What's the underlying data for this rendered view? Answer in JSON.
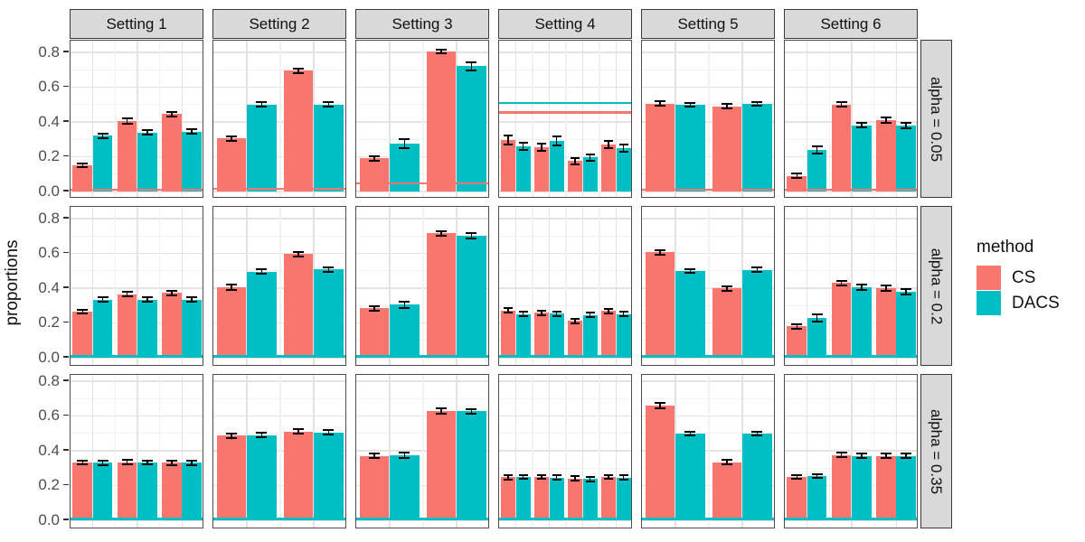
{
  "chart_data": {
    "type": "bar",
    "title": "",
    "xlabel": "",
    "ylabel": "proportions",
    "ylim": [
      0,
      0.87
    ],
    "grid": "on",
    "yticks": {
      "values": [
        0,
        0.2,
        0.4,
        0.6,
        0.8
      ],
      "labels": [
        "0.0",
        "0.2",
        "0.4",
        "0.6",
        "0.8"
      ]
    },
    "series": [
      "CS",
      "DACS"
    ],
    "colors": {
      "CS": "#F8766D",
      "DACS": "#00BFC4",
      "error_bar": "#000000"
    },
    "legend": {
      "title": "method",
      "entries": [
        "CS",
        "DACS"
      ],
      "position": "right"
    },
    "facet_cols": [
      "Setting 1",
      "Setting 2",
      "Setting 3",
      "Setting 4",
      "Setting 5",
      "Setting 6"
    ],
    "facet_rows": [
      "alpha = 0.05",
      "alpha = 0.2",
      "alpha = 0.35"
    ],
    "panels": [
      {
        "row": "alpha = 0.05",
        "col": "Setting 1",
        "groups": [
          {
            "CS": 0.15,
            "DACS": 0.32,
            "CS_err": 0.005,
            "DACS_err": 0.006
          },
          {
            "CS": 0.405,
            "DACS": 0.34,
            "CS_err": 0.006,
            "DACS_err": 0.005
          },
          {
            "CS": 0.445,
            "DACS": 0.345,
            "CS_err": 0.006,
            "DACS_err": 0.005
          }
        ],
        "ref_lines": [
          {
            "series": "CS",
            "y": 0.012
          }
        ]
      },
      {
        "row": "alpha = 0.05",
        "col": "Setting 2",
        "groups": [
          {
            "CS": 0.305,
            "DACS": 0.5,
            "CS_err": 0.005,
            "DACS_err": 0.005
          },
          {
            "CS": 0.695,
            "DACS": 0.5,
            "CS_err": 0.006,
            "DACS_err": 0.005
          }
        ],
        "ref_lines": [
          {
            "series": "CS",
            "y": 0.015
          }
        ]
      },
      {
        "row": "alpha = 0.05",
        "col": "Setting 3",
        "groups": [
          {
            "CS": 0.19,
            "DACS": 0.275,
            "CS_err": 0.006,
            "DACS_err": 0.02
          },
          {
            "CS": 0.805,
            "DACS": 0.72,
            "CS_err": 0.005,
            "DACS_err": 0.018
          }
        ],
        "ref_lines": [
          {
            "series": "CS",
            "y": 0.045
          }
        ]
      },
      {
        "row": "alpha = 0.05",
        "col": "Setting 4",
        "groups": [
          {
            "CS": 0.295,
            "DACS": 0.26,
            "CS_err": 0.018,
            "DACS_err": 0.015
          },
          {
            "CS": 0.255,
            "DACS": 0.29,
            "CS_err": 0.015,
            "DACS_err": 0.018
          },
          {
            "CS": 0.175,
            "DACS": 0.195,
            "CS_err": 0.01,
            "DACS_err": 0.012
          },
          {
            "CS": 0.27,
            "DACS": 0.25,
            "CS_err": 0.016,
            "DACS_err": 0.015
          }
        ],
        "ref_lines": [
          {
            "series": "DACS",
            "y": 0.51
          },
          {
            "series": "CS",
            "y": 0.455
          }
        ]
      },
      {
        "row": "alpha = 0.05",
        "col": "Setting 5",
        "groups": [
          {
            "CS": 0.505,
            "DACS": 0.5,
            "CS_err": 0.005,
            "DACS_err": 0.004
          },
          {
            "CS": 0.49,
            "DACS": 0.505,
            "CS_err": 0.005,
            "DACS_err": 0.004
          }
        ],
        "ref_lines": [
          {
            "series": "CS",
            "y": 0.012
          }
        ]
      },
      {
        "row": "alpha = 0.05",
        "col": "Setting 6",
        "groups": [
          {
            "CS": 0.09,
            "DACS": 0.24,
            "CS_err": 0.006,
            "DACS_err": 0.014
          },
          {
            "CS": 0.5,
            "DACS": 0.38,
            "CS_err": 0.007,
            "DACS_err": 0.006
          },
          {
            "CS": 0.41,
            "DACS": 0.378,
            "CS_err": 0.007,
            "DACS_err": 0.007
          }
        ],
        "ref_lines": [
          {
            "series": "CS",
            "y": 0.012
          }
        ]
      },
      {
        "row": "alpha = 0.2",
        "col": "Setting 1",
        "groups": [
          {
            "CS": 0.265,
            "DACS": 0.335,
            "CS_err": 0.005,
            "DACS_err": 0.005
          },
          {
            "CS": 0.365,
            "DACS": 0.335,
            "CS_err": 0.006,
            "DACS_err": 0.005
          },
          {
            "CS": 0.372,
            "DACS": 0.335,
            "CS_err": 0.006,
            "DACS_err": 0.005
          }
        ],
        "ref_lines": [
          {
            "series": "DACS",
            "y": 0.008
          }
        ]
      },
      {
        "row": "alpha = 0.2",
        "col": "Setting 2",
        "groups": [
          {
            "CS": 0.405,
            "DACS": 0.495,
            "CS_err": 0.006,
            "DACS_err": 0.005
          },
          {
            "CS": 0.595,
            "DACS": 0.508,
            "CS_err": 0.006,
            "DACS_err": 0.006
          }
        ],
        "ref_lines": [
          {
            "series": "DACS",
            "y": 0.008
          }
        ]
      },
      {
        "row": "alpha = 0.2",
        "col": "Setting 3",
        "groups": [
          {
            "CS": 0.285,
            "DACS": 0.305,
            "CS_err": 0.006,
            "DACS_err": 0.012
          },
          {
            "CS": 0.715,
            "DACS": 0.7,
            "CS_err": 0.005,
            "DACS_err": 0.008
          }
        ],
        "ref_lines": [
          {
            "series": "DACS",
            "y": 0.008
          }
        ]
      },
      {
        "row": "alpha = 0.2",
        "col": "Setting 4",
        "groups": [
          {
            "CS": 0.272,
            "DACS": 0.25,
            "CS_err": 0.007,
            "DACS_err": 0.006
          },
          {
            "CS": 0.258,
            "DACS": 0.252,
            "CS_err": 0.007,
            "DACS_err": 0.006
          },
          {
            "CS": 0.212,
            "DACS": 0.245,
            "CS_err": 0.006,
            "DACS_err": 0.006
          },
          {
            "CS": 0.268,
            "DACS": 0.25,
            "CS_err": 0.007,
            "DACS_err": 0.006
          }
        ],
        "ref_lines": [
          {
            "series": "DACS",
            "y": 0.008
          }
        ]
      },
      {
        "row": "alpha = 0.2",
        "col": "Setting 5",
        "groups": [
          {
            "CS": 0.607,
            "DACS": 0.5,
            "CS_err": 0.006,
            "DACS_err": 0.004
          },
          {
            "CS": 0.398,
            "DACS": 0.505,
            "CS_err": 0.006,
            "DACS_err": 0.005
          }
        ],
        "ref_lines": [
          {
            "series": "DACS",
            "y": 0.008
          }
        ]
      },
      {
        "row": "alpha = 0.2",
        "col": "Setting 6",
        "groups": [
          {
            "CS": 0.18,
            "DACS": 0.228,
            "CS_err": 0.006,
            "DACS_err": 0.012
          },
          {
            "CS": 0.43,
            "DACS": 0.405,
            "CS_err": 0.006,
            "DACS_err": 0.008
          },
          {
            "CS": 0.4,
            "DACS": 0.38,
            "CS_err": 0.006,
            "DACS_err": 0.008
          }
        ],
        "ref_lines": [
          {
            "series": "DACS",
            "y": 0.008
          }
        ]
      },
      {
        "row": "alpha = 0.35",
        "col": "Setting 1",
        "groups": [
          {
            "CS": 0.333,
            "DACS": 0.33,
            "CS_err": 0.005,
            "DACS_err": 0.005
          },
          {
            "CS": 0.335,
            "DACS": 0.333,
            "CS_err": 0.005,
            "DACS_err": 0.005
          },
          {
            "CS": 0.33,
            "DACS": 0.33,
            "CS_err": 0.005,
            "DACS_err": 0.005
          }
        ],
        "ref_lines": [
          {
            "series": "DACS",
            "y": 0.008
          }
        ]
      },
      {
        "row": "alpha = 0.35",
        "col": "Setting 2",
        "groups": [
          {
            "CS": 0.487,
            "DACS": 0.49,
            "CS_err": 0.006,
            "DACS_err": 0.005
          },
          {
            "CS": 0.51,
            "DACS": 0.506,
            "CS_err": 0.006,
            "DACS_err": 0.006
          }
        ],
        "ref_lines": [
          {
            "series": "DACS",
            "y": 0.008
          }
        ]
      },
      {
        "row": "alpha = 0.35",
        "col": "Setting 3",
        "groups": [
          {
            "CS": 0.37,
            "DACS": 0.374,
            "CS_err": 0.006,
            "DACS_err": 0.006
          },
          {
            "CS": 0.628,
            "DACS": 0.627,
            "CS_err": 0.007,
            "DACS_err": 0.007
          }
        ],
        "ref_lines": [
          {
            "series": "DACS",
            "y": 0.008
          }
        ]
      },
      {
        "row": "alpha = 0.35",
        "col": "Setting 4",
        "groups": [
          {
            "CS": 0.247,
            "DACS": 0.25,
            "CS_err": 0.005,
            "DACS_err": 0.005
          },
          {
            "CS": 0.25,
            "DACS": 0.245,
            "CS_err": 0.005,
            "DACS_err": 0.005
          },
          {
            "CS": 0.24,
            "DACS": 0.237,
            "CS_err": 0.005,
            "DACS_err": 0.005
          },
          {
            "CS": 0.25,
            "DACS": 0.246,
            "CS_err": 0.005,
            "DACS_err": 0.005
          }
        ],
        "ref_lines": [
          {
            "series": "DACS",
            "y": 0.008
          }
        ]
      },
      {
        "row": "alpha = 0.35",
        "col": "Setting 5",
        "groups": [
          {
            "CS": 0.66,
            "DACS": 0.5,
            "CS_err": 0.006,
            "DACS_err": 0.004
          },
          {
            "CS": 0.335,
            "DACS": 0.5,
            "CS_err": 0.006,
            "DACS_err": 0.004
          }
        ],
        "ref_lines": [
          {
            "series": "DACS",
            "y": 0.008
          }
        ]
      },
      {
        "row": "alpha = 0.35",
        "col": "Setting 6",
        "groups": [
          {
            "CS": 0.25,
            "DACS": 0.255,
            "CS_err": 0.005,
            "DACS_err": 0.005
          },
          {
            "CS": 0.375,
            "DACS": 0.37,
            "CS_err": 0.006,
            "DACS_err": 0.006
          },
          {
            "CS": 0.37,
            "DACS": 0.37,
            "CS_err": 0.006,
            "DACS_err": 0.006
          }
        ],
        "ref_lines": [
          {
            "series": "DACS",
            "y": 0.008
          }
        ]
      }
    ]
  }
}
